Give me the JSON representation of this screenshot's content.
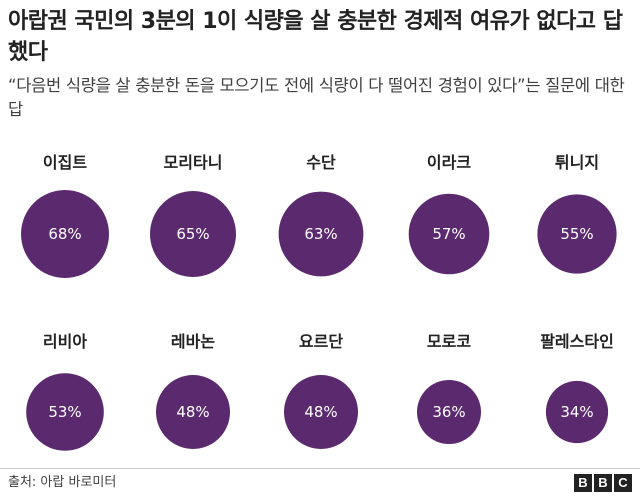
{
  "header": {
    "title": "아랍권 국민의 3분의 1이 식량을 살 충분한 경제적 여유가 없다고 답했다",
    "subtitle": "“다음번 식량을 살 충분한 돈을 모으기도 전에 식량이 다 떨어진 경험이 있다”는 질문에 대한 답"
  },
  "chart_data": {
    "type": "bubble",
    "unit": "%",
    "categories": [
      "이집트",
      "모리타니",
      "수단",
      "이라크",
      "튀니지",
      "리비아",
      "레바논",
      "요르단",
      "모로코",
      "팔레스타인"
    ],
    "values": [
      68,
      65,
      63,
      57,
      55,
      53,
      48,
      48,
      36,
      34
    ],
    "value_labels": [
      "68%",
      "65%",
      "63%",
      "57%",
      "55%",
      "53%",
      "48%",
      "48%",
      "36%",
      "34%"
    ],
    "color": "#5b2a6e",
    "layout": "2 rows × 5 columns"
  },
  "footer": {
    "source": "출처: 아랍 바로미터",
    "logo_letters": [
      "B",
      "B",
      "C"
    ]
  }
}
